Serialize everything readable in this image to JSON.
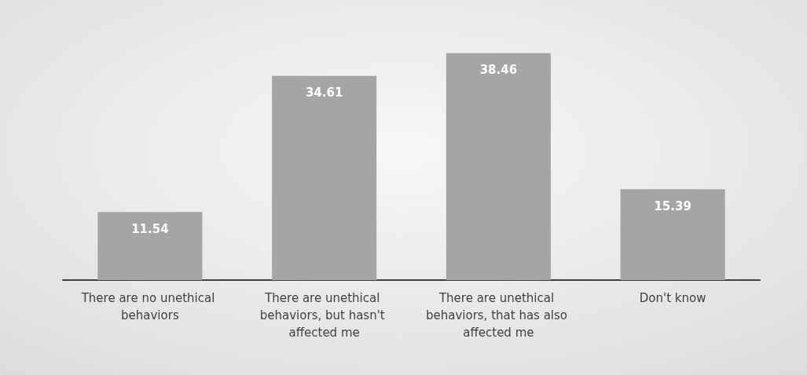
{
  "chart_data": {
    "type": "bar",
    "categories": [
      "There are no unethical behaviors",
      "There are unethical behaviors, but hasn't affected me",
      "There are unethical behaviors, that has also affected me",
      "Don't know"
    ],
    "values": [
      11.54,
      34.61,
      38.46,
      15.39
    ],
    "color": "#a5a5a5",
    "data_labels": true
  }
}
